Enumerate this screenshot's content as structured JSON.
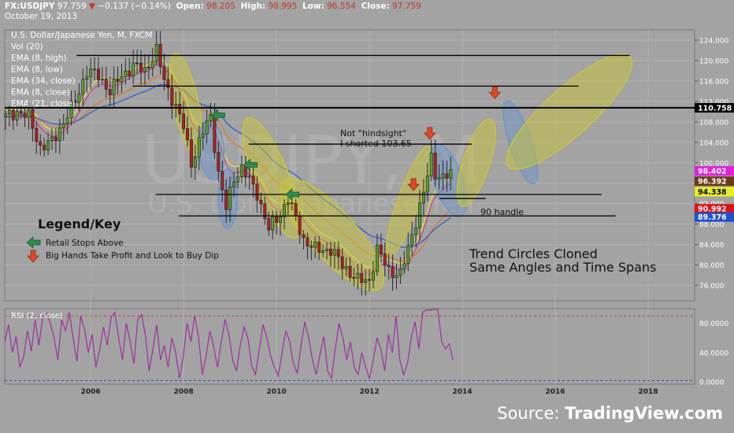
{
  "header": {
    "symbol": "FX:USDJPY",
    "last": "97.759",
    "change_arrow": "▼",
    "change": "−0.137 (−0.14%)",
    "open_label": "Open:",
    "open": "98.205",
    "high_label": "High:",
    "high": "98.995",
    "low_label": "Low:",
    "low": "96.554",
    "close_label": "Close:",
    "close": "97.759",
    "date": "October 19, 2013"
  },
  "study_legend": [
    "U.S. Dollar/Japanese Yen, M, FXCM",
    "Vol (20)",
    "EMA (8, high)",
    "EMA (8, low)",
    "EMA (34, close)",
    "EMA (8, close)",
    "EMA (21, close)"
  ],
  "watermark": {
    "big": "USDJPY, M",
    "small": "U.S. Dollar/Japanese Yen"
  },
  "legend_key": {
    "title": "Legend/Key",
    "items": [
      {
        "label": "Retail Stops Above",
        "icon": "green-left-arrow-icon"
      },
      {
        "label": "Big Hands Take Profit and Look to Buy Dip",
        "icon": "red-down-arrow-icon"
      }
    ]
  },
  "annotations": {
    "not_hindsight": "Not \"hindsight\"",
    "shorted": "I shorted 103.65",
    "handle": "90 handle",
    "trend_line1": "Trend Circles Cloned",
    "trend_line2": "Same Angles and Time Spans"
  },
  "source": {
    "prefix": "Source: ",
    "brand": "TradingView.com"
  },
  "colors": {
    "bull": "#5aa02c",
    "bear": "#b02020",
    "ellipse_olive": "#c8c43a",
    "ellipse_blue": "#6f95c8",
    "rsi": "#9b30a0"
  },
  "chart_data": {
    "type": "candlestick",
    "title": "U.S. Dollar/Japanese Yen, M, FXCM",
    "x_ticks": [
      "2006",
      "2008",
      "2010",
      "2012",
      "2014",
      "2016",
      "2018"
    ],
    "y_ticks": [
      "124.000",
      "120.000",
      "116.000",
      "112.000",
      "108.000",
      "104.000",
      "100.000",
      "96.000",
      "92.000",
      "88.000",
      "84.000",
      "80.000",
      "76.000"
    ],
    "ylim": [
      73,
      126
    ],
    "xlim": [
      2004.15,
      2019.0
    ],
    "price_labels": [
      {
        "value": 110.758,
        "text": "110.758",
        "bg": "#000000",
        "fg": "#ffffff"
      },
      {
        "value": 98.402,
        "text": "98.402",
        "bg": "#e020e0",
        "fg": "#ffffff"
      },
      {
        "value": 96.392,
        "text": "96.392",
        "bg": "#6a3a1a",
        "fg": "#ffffff"
      },
      {
        "value": 94.338,
        "text": "94.338",
        "bg": "#e6f01e",
        "fg": "#000000"
      },
      {
        "value": 90.992,
        "text": "90.992",
        "bg": "#e01010",
        "fg": "#ffffff"
      },
      {
        "value": 89.376,
        "text": "89.376",
        "bg": "#2050d0",
        "fg": "#ffffff"
      }
    ],
    "horizontal_levels": [
      {
        "y": 121.0,
        "x0": 2005.7,
        "x1": 2017.6
      },
      {
        "y": 115.0,
        "x0": 2006.9,
        "x1": 2016.5
      },
      {
        "y": 110.758,
        "x0": 2004.15,
        "x1": 2019.0
      },
      {
        "y": 103.65,
        "x0": 2009.4,
        "x1": 2014.2
      },
      {
        "y": 93.8,
        "x0": 2007.4,
        "x1": 2017.0
      },
      {
        "y": 93.0,
        "x0": 2013.5,
        "x1": 2014.5
      },
      {
        "y": 89.6,
        "x0": 2007.9,
        "x1": 2017.3
      }
    ],
    "anchors": [
      [
        "2004-03",
        109
      ],
      [
        "2004-06",
        110
      ],
      [
        "2004-09",
        109
      ],
      [
        "2004-12",
        103
      ],
      [
        "2005-03",
        104
      ],
      [
        "2005-06",
        108
      ],
      [
        "2005-09",
        112
      ],
      [
        "2005-12",
        118
      ],
      [
        "2006-03",
        117
      ],
      [
        "2006-06",
        114
      ],
      [
        "2006-09",
        117
      ],
      [
        "2006-12",
        119
      ],
      [
        "2007-03",
        118
      ],
      [
        "2007-06",
        122
      ],
      [
        "2007-08",
        116
      ],
      [
        "2007-11",
        111
      ],
      [
        "2008-01",
        107
      ],
      [
        "2008-03",
        100
      ],
      [
        "2008-06",
        106
      ],
      [
        "2008-08",
        109
      ],
      [
        "2008-10",
        98
      ],
      [
        "2008-12",
        91
      ],
      [
        "2009-02",
        97
      ],
      [
        "2009-04",
        99
      ],
      [
        "2009-08",
        94
      ],
      [
        "2009-11",
        87
      ],
      [
        "2010-02",
        90
      ],
      [
        "2010-04",
        93
      ],
      [
        "2010-08",
        85
      ],
      [
        "2010-11",
        83
      ],
      [
        "2011-03",
        83
      ],
      [
        "2011-06",
        80
      ],
      [
        "2011-10",
        77
      ],
      [
        "2012-01",
        77
      ],
      [
        "2012-03",
        83
      ],
      [
        "2012-06",
        79
      ],
      [
        "2012-09",
        78
      ],
      [
        "2012-12",
        86
      ],
      [
        "2013-03",
        94
      ],
      [
        "2013-05",
        101
      ],
      [
        "2013-06",
        98
      ],
      [
        "2013-08",
        97
      ],
      [
        "2013-10",
        97.76
      ]
    ],
    "ellipses": [
      {
        "cx": 2008.05,
        "cy": 111.5,
        "rx": 16,
        "ry": 66,
        "angle": -12,
        "color": "olive"
      },
      {
        "cx": 2008.6,
        "cy": 102.5,
        "rx": 16,
        "ry": 38,
        "angle": -5,
        "color": "blue"
      },
      {
        "cx": 2009.9,
        "cy": 97.0,
        "rx": 22,
        "ry": 82,
        "angle": -22,
        "color": "olive"
      },
      {
        "cx": 2008.95,
        "cy": 93.0,
        "rx": 12,
        "ry": 38,
        "angle": 0,
        "color": "blue"
      },
      {
        "cx": 2011.2,
        "cy": 86.0,
        "rx": 30,
        "ry": 92,
        "angle": -42,
        "color": "olive"
      },
      {
        "cx": 2012.85,
        "cy": 92.5,
        "rx": 14,
        "ry": 74,
        "angle": 20,
        "color": "olive"
      },
      {
        "cx": 2013.7,
        "cy": 96.5,
        "rx": 18,
        "ry": 48,
        "angle": -18,
        "color": "blue"
      },
      {
        "cx": 2014.3,
        "cy": 100.0,
        "rx": 17,
        "ry": 58,
        "angle": 18,
        "color": "olive"
      },
      {
        "cx": 2015.25,
        "cy": 104.0,
        "rx": 14,
        "ry": 55,
        "angle": -18,
        "color": "blue"
      },
      {
        "cx": 2016.3,
        "cy": 110.0,
        "rx": 30,
        "ry": 104,
        "angle": 48,
        "color": "olive"
      }
    ],
    "arrows_green": [
      {
        "x": 2008.75,
        "y": 109.3
      },
      {
        "x": 2009.45,
        "y": 99.6
      },
      {
        "x": 2010.35,
        "y": 93.8
      }
    ],
    "arrows_red": [
      {
        "x": 2013.3,
        "y": 105.5
      },
      {
        "x": 2012.95,
        "y": 95.5
      },
      {
        "x": 2014.7,
        "y": 113.5
      }
    ],
    "rsi": {
      "title": "RSI (2, close)",
      "y_ticks": [
        "80.0000",
        "40.0000",
        "0.0000"
      ],
      "ylim": [
        -3,
        100
      ],
      "upper_line": 90,
      "lower_line": 2,
      "values": [
        55,
        78,
        40,
        62,
        20,
        35,
        70,
        42,
        85,
        50,
        88,
        94,
        80,
        60,
        30,
        85,
        70,
        95,
        60,
        28,
        90,
        72,
        40,
        65,
        20,
        45,
        75,
        50,
        88,
        95,
        60,
        30,
        80,
        55,
        25,
        85,
        92,
        65,
        15,
        45,
        78,
        30,
        50,
        20,
        60,
        40,
        5,
        35,
        80,
        55,
        90,
        62,
        10,
        35,
        70,
        48,
        20,
        55,
        85,
        65,
        30,
        15,
        50,
        75,
        60,
        22,
        10,
        45,
        78,
        60,
        35,
        20,
        8,
        40,
        70,
        55,
        25,
        12,
        50,
        82,
        60,
        30,
        10,
        38,
        62,
        15,
        5,
        45,
        80,
        60,
        30,
        55,
        20,
        10,
        40,
        20,
        5,
        30,
        60,
        45,
        15,
        65,
        40,
        90,
        30,
        10,
        25,
        60,
        82,
        45,
        95,
        98,
        98,
        99,
        99,
        55,
        45,
        52,
        30
      ]
    }
  }
}
